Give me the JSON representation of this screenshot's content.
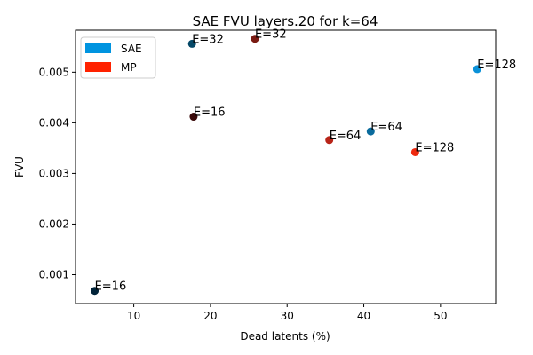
{
  "chart_data": {
    "type": "scatter",
    "title": "SAE FVU layers.20 for k=64",
    "xlabel": "Dead latents (%)",
    "ylabel": "FVU",
    "xlim": [
      2.4,
      57.2
    ],
    "ylim": [
      0.00043,
      0.00583
    ],
    "xticks": [
      10,
      20,
      30,
      40,
      50
    ],
    "yticks": [
      0.001,
      0.002,
      0.003,
      0.004,
      0.005
    ],
    "ytick_labels": [
      "0.001",
      "0.002",
      "0.003",
      "0.004",
      "0.005"
    ],
    "grid": false,
    "legend_position": "top-left",
    "legend": [
      {
        "label": "SAE",
        "color": "#0094e0"
      },
      {
        "label": "MP",
        "color": "#ff2200"
      }
    ],
    "points": [
      {
        "x": 4.9,
        "y": 0.00068,
        "label": "E=16",
        "color": "#01243a"
      },
      {
        "x": 17.6,
        "y": 0.00556,
        "label": "E=32",
        "color": "#054867"
      },
      {
        "x": 40.9,
        "y": 0.00383,
        "label": "E=64",
        "color": "#0a6b9d"
      },
      {
        "x": 54.8,
        "y": 0.00506,
        "label": "E=128",
        "color": "#0a91d8"
      },
      {
        "x": 17.8,
        "y": 0.00412,
        "label": "E=16",
        "color": "#3b0b0b"
      },
      {
        "x": 25.8,
        "y": 0.00566,
        "label": "E=32",
        "color": "#7a1a12"
      },
      {
        "x": 35.5,
        "y": 0.00366,
        "label": "E=64",
        "color": "#b82418"
      },
      {
        "x": 46.7,
        "y": 0.00342,
        "label": "E=128",
        "color": "#ee2a10"
      }
    ]
  }
}
